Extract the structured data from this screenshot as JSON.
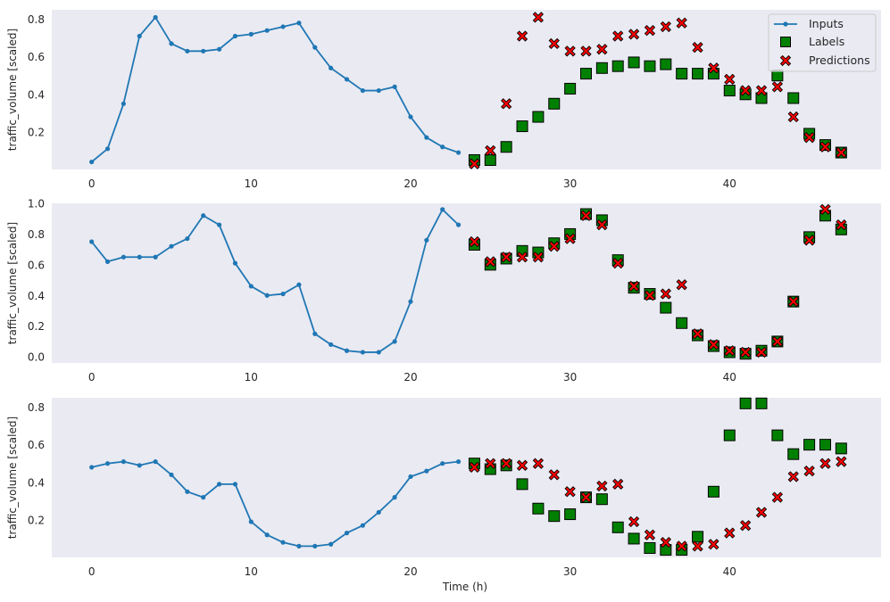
{
  "figure": {
    "xlabel": "Time (h)",
    "ylabel": "traffic_volume [scaled]",
    "colors": {
      "background": "#eaeaf2",
      "inputs": "#1f77b4",
      "labels": "#008000",
      "predictions": "#ff0000",
      "edge": "#000000"
    }
  },
  "legend": {
    "placement": "top-right",
    "entries": [
      "Inputs",
      "Labels",
      "Predictions"
    ]
  },
  "chart_data": [
    {
      "type": "line",
      "xlim": [
        -2.5,
        49.5
      ],
      "ylim": [
        0.0,
        0.85
      ],
      "xticks": [
        0,
        10,
        20,
        30,
        40
      ],
      "yticks": [
        0.2,
        0.4,
        0.6,
        0.8
      ],
      "series": [
        {
          "name": "Inputs",
          "x_start": 0,
          "values": [
            0.04,
            0.11,
            0.35,
            0.71,
            0.81,
            0.67,
            0.63,
            0.63,
            0.64,
            0.71,
            0.72,
            0.74,
            0.76,
            0.78,
            0.65,
            0.54,
            0.48,
            0.42,
            0.42,
            0.44,
            0.28,
            0.17,
            0.12,
            0.09
          ]
        },
        {
          "name": "Labels",
          "x_start": 24,
          "values": [
            0.05,
            0.05,
            0.12,
            0.23,
            0.28,
            0.35,
            0.43,
            0.51,
            0.54,
            0.55,
            0.57,
            0.55,
            0.56,
            0.51,
            0.51,
            0.51,
            0.42,
            0.4,
            0.38,
            0.5,
            0.38,
            0.19,
            0.13,
            0.09
          ]
        },
        {
          "name": "Predictions",
          "x_start": 24,
          "values": [
            0.03,
            0.1,
            0.35,
            0.71,
            0.81,
            0.67,
            0.63,
            0.63,
            0.64,
            0.71,
            0.72,
            0.74,
            0.76,
            0.78,
            0.65,
            0.54,
            0.48,
            0.42,
            0.42,
            0.44,
            0.28,
            0.17,
            0.12,
            0.09
          ]
        }
      ]
    },
    {
      "type": "line",
      "xlim": [
        -2.5,
        49.5
      ],
      "ylim": [
        -0.04,
        1.0
      ],
      "xticks": [
        0,
        10,
        20,
        30,
        40
      ],
      "yticks": [
        0.0,
        0.2,
        0.4,
        0.6,
        0.8,
        1.0
      ],
      "series": [
        {
          "name": "Inputs",
          "x_start": 0,
          "values": [
            0.75,
            0.62,
            0.65,
            0.65,
            0.65,
            0.72,
            0.77,
            0.92,
            0.86,
            0.61,
            0.46,
            0.4,
            0.41,
            0.47,
            0.15,
            0.08,
            0.04,
            0.03,
            0.03,
            0.1,
            0.36,
            0.76,
            0.96,
            0.86
          ]
        },
        {
          "name": "Labels",
          "x_start": 24,
          "values": [
            0.73,
            0.6,
            0.64,
            0.69,
            0.68,
            0.74,
            0.8,
            0.93,
            0.89,
            0.63,
            0.45,
            0.41,
            0.32,
            0.22,
            0.14,
            0.07,
            0.03,
            0.02,
            0.04,
            0.1,
            0.36,
            0.78,
            0.92,
            0.83
          ]
        },
        {
          "name": "Predictions",
          "x_start": 24,
          "values": [
            0.75,
            0.62,
            0.65,
            0.65,
            0.65,
            0.72,
            0.77,
            0.92,
            0.86,
            0.61,
            0.46,
            0.4,
            0.41,
            0.47,
            0.15,
            0.08,
            0.04,
            0.03,
            0.03,
            0.1,
            0.36,
            0.76,
            0.96,
            0.86
          ]
        }
      ]
    },
    {
      "type": "line",
      "xlim": [
        -2.5,
        49.5
      ],
      "ylim": [
        0.0,
        0.85
      ],
      "xticks": [
        0,
        10,
        20,
        30,
        40
      ],
      "yticks": [
        0.2,
        0.4,
        0.6,
        0.8
      ],
      "series": [
        {
          "name": "Inputs",
          "x_start": 0,
          "values": [
            0.48,
            0.5,
            0.51,
            0.49,
            0.51,
            0.44,
            0.35,
            0.32,
            0.39,
            0.39,
            0.19,
            0.12,
            0.08,
            0.06,
            0.06,
            0.07,
            0.13,
            0.17,
            0.24,
            0.32,
            0.43,
            0.46,
            0.5,
            0.51
          ]
        },
        {
          "name": "Labels",
          "x_start": 24,
          "values": [
            0.5,
            0.47,
            0.49,
            0.39,
            0.26,
            0.22,
            0.23,
            0.32,
            0.31,
            0.16,
            0.1,
            0.05,
            0.04,
            0.04,
            0.11,
            0.35,
            0.65,
            0.82,
            0.82,
            0.65,
            0.55,
            0.6,
            0.6,
            0.58
          ]
        },
        {
          "name": "Predictions",
          "x_start": 24,
          "values": [
            0.48,
            0.5,
            0.5,
            0.49,
            0.5,
            0.44,
            0.35,
            0.32,
            0.38,
            0.39,
            0.19,
            0.12,
            0.08,
            0.06,
            0.06,
            0.07,
            0.13,
            0.17,
            0.24,
            0.32,
            0.43,
            0.46,
            0.5,
            0.51
          ]
        }
      ]
    }
  ]
}
